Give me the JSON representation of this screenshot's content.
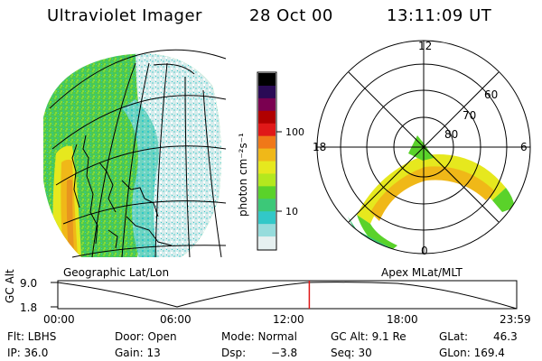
{
  "header": {
    "instrument": "Ultraviolet Imager",
    "date": "28 Oct 00",
    "time": "13:11:09 UT"
  },
  "geo_panel": {
    "caption": "Geographic Lat/Lon"
  },
  "colorbar": {
    "unit_label": "photon cm⁻²s⁻¹",
    "tick_labels": [
      "100",
      "10"
    ],
    "colors_top_to_bottom": [
      "#000000",
      "#2a0a55",
      "#7a0050",
      "#b00000",
      "#e01818",
      "#f07818",
      "#f0b818",
      "#e6e81e",
      "#b4e81e",
      "#5ad22a",
      "#3cc878",
      "#32c8c8",
      "#96dcdc",
      "#e6f0f0"
    ]
  },
  "polar_panel": {
    "caption": "Apex  MLat/MLT",
    "mlt_labels": {
      "top": "12",
      "left": "18",
      "right": "6",
      "bottom": "0"
    },
    "lat_labels": [
      "60",
      "70",
      "80"
    ]
  },
  "timeline": {
    "y_axis_label": "GC Alt",
    "y_ticks": [
      "9.0",
      "1.8"
    ],
    "x_ticks": [
      "00:00",
      "06:00",
      "12:00",
      "18:00",
      "23:59"
    ],
    "current_time_fraction": 0.548
  },
  "status": {
    "flt": "Flt: LBHS",
    "ip": "IP: 36.0",
    "door": "Door: Open",
    "gain": "Gain: 13",
    "mode": "Mode: Normal",
    "dsp": "Dsp:",
    "dsp_value": "−3.8",
    "gc_alt": "GC Alt: 9.1 Re",
    "seq": "Seq: 30",
    "glat": "GLat:",
    "glat_value": "46.3",
    "glon": "GLon: 169.4"
  },
  "palette": {
    "green": "#5ad22a",
    "cyan": "#32c8c8",
    "pale": "#d8ecec",
    "yellow": "#e6e81e",
    "orange": "#f0b818",
    "marker": "#e01818"
  }
}
